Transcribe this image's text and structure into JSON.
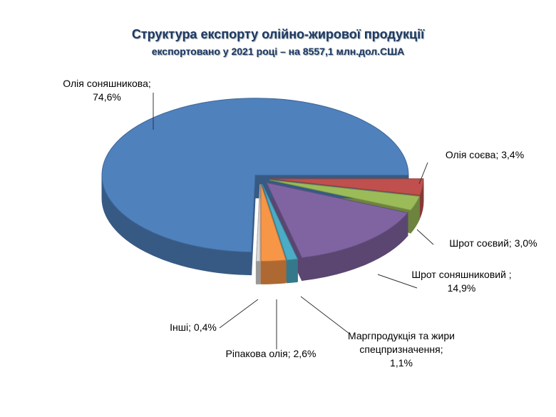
{
  "chart_data": {
    "type": "pie3d",
    "title": "Структура експорту олійно-жирової продукції",
    "subtitle": "експортовано  у 2021 році – на 8557,1 млн.дол.США",
    "categories": [
      "Олія соєва;",
      "Шрот соєвий;",
      "Шрот соняшниковий ;",
      "Маргпродукція та жири спецпризначення;",
      "Ріпакова олія;",
      "Інші;",
      "Олія соняшникова;"
    ],
    "values": [
      3.4,
      3.0,
      14.9,
      1.1,
      2.6,
      0.4,
      74.6
    ],
    "value_labels": [
      "3,4%",
      "3,0%",
      "14,9%",
      "1,1%",
      "2,6%",
      "0,4%",
      "74,6%"
    ],
    "colors": [
      "#c0504d",
      "#9bbb59",
      "#8064a2",
      "#4bacc6",
      "#f79646",
      "#d9d9d9",
      "#4f81bd"
    ]
  }
}
